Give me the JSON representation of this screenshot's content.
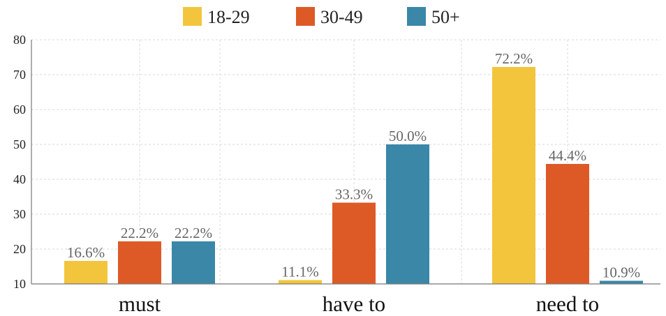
{
  "chart_data": {
    "type": "bar",
    "categories": [
      "must",
      "have to",
      "need to"
    ],
    "series": [
      {
        "name": "18-29",
        "color": "#F2C53D",
        "values": [
          16.6,
          11.1,
          72.2
        ],
        "labels": [
          "16.6%",
          "11.1%",
          "72.2%"
        ]
      },
      {
        "name": "30-49",
        "color": "#DD5A27",
        "values": [
          22.2,
          33.3,
          44.4
        ],
        "labels": [
          "22.2%",
          "33.3%",
          "44.4%"
        ]
      },
      {
        "name": "50+",
        "color": "#3A87A8",
        "values": [
          22.2,
          50.0,
          10.9
        ],
        "labels": [
          "22.2%",
          "50.0%",
          "10.9%"
        ]
      }
    ],
    "ylim": [
      10,
      80
    ],
    "yticks": [
      10,
      20,
      30,
      40,
      50,
      60,
      70,
      80
    ],
    "grid": true,
    "legend_position": "top-center"
  }
}
